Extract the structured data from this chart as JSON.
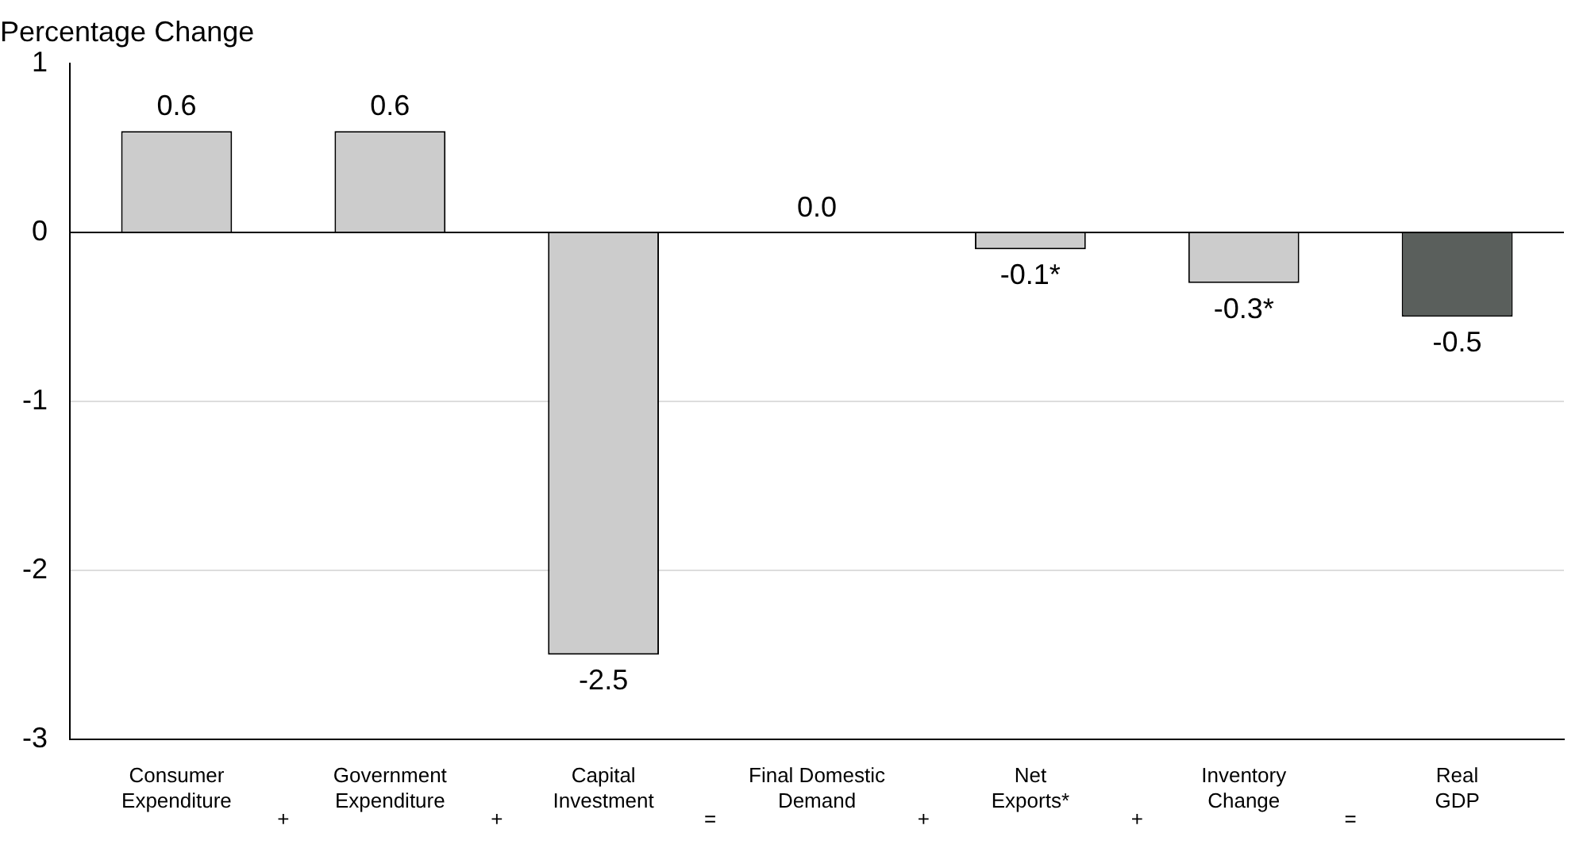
{
  "chart_data": {
    "type": "bar",
    "ylabel": "Percentage Change",
    "categories": [
      "Consumer\nExpenditure",
      "Government\nExpenditure",
      "Capital\nInvestment",
      "Final Domestic\nDemand",
      "Net\nExports*",
      "Inventory\nChange",
      "Real\nGDP"
    ],
    "values": [
      0.6,
      0.6,
      -2.5,
      0.0,
      -0.1,
      -0.3,
      -0.5
    ],
    "value_labels": [
      "0.6",
      "0.6",
      "-2.5",
      "0.0",
      "-0.1*",
      "-0.3*",
      "-0.5"
    ],
    "colors": [
      "#cccccc",
      "#cccccc",
      "#cccccc",
      "#cccccc",
      "#cccccc",
      "#cccccc",
      "#5a5f5c"
    ],
    "annotations": [
      "+",
      "+",
      "=",
      "+",
      "+",
      "="
    ],
    "ylim": [
      -3,
      1
    ],
    "yticks": [
      -3,
      -2,
      -1,
      0,
      1
    ],
    "grid": "y",
    "legend": false
  }
}
